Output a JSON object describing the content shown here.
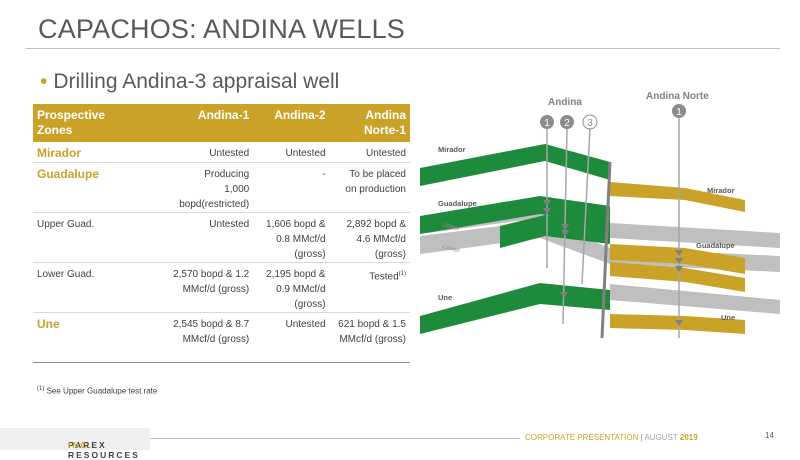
{
  "title": "CAPACHOS: ANDINA WELLS",
  "bullet": "Drilling Andina-3 appraisal well",
  "table": {
    "headers": [
      "Prospective Zones",
      "Andina-1",
      "Andina-2",
      "Andina Norte-1"
    ],
    "rows": [
      {
        "zone": "Mirador",
        "a1": "Untested",
        "a2": "Untested",
        "an1": "Untested"
      },
      {
        "zone": "Guadalupe",
        "a1": "Producing 1,000 bopd(restricted)",
        "a2": "-",
        "an1": "To be placed on production"
      },
      {
        "zone": "Upper Guad.",
        "a1": "Untested",
        "a2": "1,606 bopd & 0.8 MMcf/d (gross)",
        "an1": "2,892 bopd & 4.6 MMcf/d (gross)"
      },
      {
        "zone": "Lower Guad.",
        "a1": "2,570 bopd & 1.2 MMcf/d (gross)",
        "a2": "2,195 bopd & 0.9 MMcf/d (gross)",
        "an1": "Tested",
        "an1_sup": "(1)"
      },
      {
        "zone": "Une",
        "a1": "2,545 bopd & 8.7 MMcf/d (gross)",
        "a2": "Untested",
        "an1": "621 bopd & 1.5 MMcf/d (gross)"
      }
    ]
  },
  "footnote": {
    "sup": "(1)",
    "text": "See  Upper Guadalupe test rate"
  },
  "diagram": {
    "andina_label": "Andina",
    "andina_norte_label": "Andina Norte",
    "well_numbers": [
      "1",
      "2",
      "3"
    ],
    "andina_norte_well": "1",
    "left_labels": {
      "mirador": "Mirador",
      "guadalupe": "Guadalupe",
      "upper": "Upper",
      "lower": "Lower",
      "une": "Une"
    },
    "right_labels": {
      "mirador": "Mirador",
      "guadalupe": "Guadalupe",
      "une": "Une"
    },
    "colors": {
      "green": "#1e8a3c",
      "gold": "#c9a227",
      "grey": "#bfbfbf"
    }
  },
  "footer": {
    "company": "PAREX RESOURCES",
    "inc": "INC.",
    "presentation": "CORPORATE PRESENTATION",
    "separator": "|",
    "month": "AUGUST",
    "year": "2019",
    "page": "14"
  }
}
